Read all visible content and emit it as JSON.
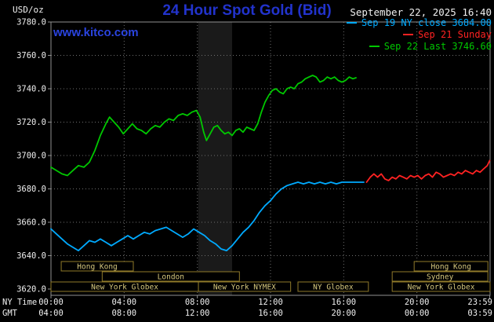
{
  "header": {
    "unit_label": "USD/oz",
    "title": "24 Hour Spot Gold (Bid)",
    "datetime": "September 22, 2025 16:40",
    "watermark": "www.kitco.com"
  },
  "colors": {
    "background": "#000000",
    "title_blue": "#2233cc",
    "watermark_blue": "#2a44e0",
    "axis_text": "#f0f0f0",
    "grid": "#6f6f6f",
    "border": "#919191",
    "session_border": "#8f7a2a",
    "session_text": "#d6c87e",
    "band": "#1a1a1a"
  },
  "legend": [
    {
      "label": "Sep 19 NY close 3684.00",
      "color": "#00aaff"
    },
    {
      "label": "Sep 21 Sunday",
      "color": "#ff2222"
    },
    {
      "label": "Sep 22 Last 3746.60",
      "color": "#00c800"
    }
  ],
  "sessions": {
    "rows": [
      {
        "boxes": [
          {
            "label": "Hong Kong",
            "t0": 0.56,
            "t1": 4.5
          },
          {
            "label": "Hong Kong",
            "t0": 19.85,
            "t1": 23.88
          }
        ]
      },
      {
        "boxes": [
          {
            "label": "London",
            "t0": 2.8,
            "t1": 10.3
          },
          {
            "label": "Sydney",
            "t0": 18.65,
            "t1": 23.88
          }
        ]
      },
      {
        "boxes": [
          {
            "label": "New York Globex",
            "t0": 0.0,
            "t1": 8.06
          },
          {
            "label": "New York NYMEX",
            "t0": 8.06,
            "t1": 13.1
          },
          {
            "label": "NY Globex",
            "t0": 13.5,
            "t1": 17.35
          },
          {
            "label": "New York Globex",
            "t0": 18.65,
            "t1": 24.0
          }
        ]
      }
    ]
  },
  "chart_data": {
    "type": "line",
    "title": "24 Hour Spot Gold (Bid)",
    "ylabel": "USD/oz",
    "ylim": [
      3620,
      3780
    ],
    "y_tick_step": 20,
    "y_tick_labels": [
      "3780.0",
      "3760.0",
      "3740.0",
      "3720.0",
      "3700.0",
      "3680.0",
      "3660.0",
      "3640.0",
      "3620.0"
    ],
    "xlim": [
      0,
      24
    ],
    "grid": true,
    "legend_position": "top-right",
    "x_axis_row_labels": [
      "NY Time",
      "GMT"
    ],
    "x_ticks": [
      {
        "t": 0,
        "ny": "00:00",
        "gmt": "04:00"
      },
      {
        "t": 4,
        "ny": "04:00",
        "gmt": "08:00"
      },
      {
        "t": 8,
        "ny": "08:00",
        "gmt": "12:00"
      },
      {
        "t": 12,
        "ny": "12:00",
        "gmt": "16:00"
      },
      {
        "t": 16,
        "ny": "16:00",
        "gmt": "20:00"
      },
      {
        "t": 20,
        "ny": "20:00",
        "gmt": "00:00"
      },
      {
        "t": 23.983,
        "ny": "23:59",
        "gmt": "03:59"
      }
    ],
    "band": {
      "x0": 8.05,
      "x1": 9.9,
      "color": "#1a1a1a"
    },
    "series": [
      {
        "name": "Sep 19 NY close 3684.00",
        "color": "#00aaff",
        "points": [
          [
            0,
            3656
          ],
          [
            0.3,
            3653
          ],
          [
            0.6,
            3650
          ],
          [
            0.9,
            3647
          ],
          [
            1.2,
            3645
          ],
          [
            1.5,
            3643
          ],
          [
            1.8,
            3646
          ],
          [
            2.1,
            3649
          ],
          [
            2.4,
            3648
          ],
          [
            2.7,
            3650
          ],
          [
            3,
            3648
          ],
          [
            3.3,
            3646
          ],
          [
            3.6,
            3648
          ],
          [
            3.9,
            3650
          ],
          [
            4.2,
            3652
          ],
          [
            4.5,
            3650
          ],
          [
            4.8,
            3652
          ],
          [
            5.1,
            3654
          ],
          [
            5.4,
            3653
          ],
          [
            5.7,
            3655
          ],
          [
            6,
            3656
          ],
          [
            6.3,
            3657
          ],
          [
            6.6,
            3655
          ],
          [
            6.9,
            3653
          ],
          [
            7.2,
            3651
          ],
          [
            7.5,
            3653
          ],
          [
            7.8,
            3656
          ],
          [
            8.1,
            3654
          ],
          [
            8.4,
            3652
          ],
          [
            8.7,
            3649
          ],
          [
            9,
            3647
          ],
          [
            9.3,
            3644
          ],
          [
            9.6,
            3643
          ],
          [
            9.9,
            3646
          ],
          [
            10.2,
            3650
          ],
          [
            10.5,
            3654
          ],
          [
            10.8,
            3657
          ],
          [
            11.1,
            3661
          ],
          [
            11.4,
            3666
          ],
          [
            11.7,
            3670
          ],
          [
            12,
            3673
          ],
          [
            12.3,
            3677
          ],
          [
            12.6,
            3680
          ],
          [
            12.9,
            3682
          ],
          [
            13.2,
            3683
          ],
          [
            13.5,
            3684
          ],
          [
            13.8,
            3683
          ],
          [
            14.1,
            3684
          ],
          [
            14.4,
            3683
          ],
          [
            14.7,
            3684
          ],
          [
            15,
            3683
          ],
          [
            15.3,
            3684
          ],
          [
            15.6,
            3683
          ],
          [
            15.9,
            3684
          ],
          [
            16.2,
            3684
          ],
          [
            16.5,
            3684
          ],
          [
            16.8,
            3684
          ],
          [
            17.1,
            3684
          ]
        ]
      },
      {
        "name": "Sep 21 Sunday",
        "color": "#ff2222",
        "points": [
          [
            17.25,
            3684
          ],
          [
            17.45,
            3687
          ],
          [
            17.65,
            3689
          ],
          [
            17.85,
            3687
          ],
          [
            18.05,
            3689
          ],
          [
            18.25,
            3686
          ],
          [
            18.45,
            3685
          ],
          [
            18.65,
            3687
          ],
          [
            18.85,
            3686
          ],
          [
            19.05,
            3688
          ],
          [
            19.25,
            3687
          ],
          [
            19.45,
            3686
          ],
          [
            19.65,
            3688
          ],
          [
            19.85,
            3687
          ],
          [
            20.05,
            3688
          ],
          [
            20.25,
            3686
          ],
          [
            20.45,
            3688
          ],
          [
            20.65,
            3689
          ],
          [
            20.85,
            3687
          ],
          [
            21.05,
            3690
          ],
          [
            21.25,
            3689
          ],
          [
            21.45,
            3687
          ],
          [
            21.65,
            3688
          ],
          [
            21.85,
            3689
          ],
          [
            22.05,
            3688
          ],
          [
            22.25,
            3690
          ],
          [
            22.45,
            3689
          ],
          [
            22.65,
            3691
          ],
          [
            22.85,
            3690
          ],
          [
            23.05,
            3689
          ],
          [
            23.25,
            3691
          ],
          [
            23.45,
            3690
          ],
          [
            23.65,
            3692
          ],
          [
            23.85,
            3694
          ],
          [
            23.98,
            3697
          ]
        ]
      },
      {
        "name": "Sep 22 Last 3746.60",
        "color": "#00c800",
        "points": [
          [
            0,
            3693
          ],
          [
            0.3,
            3691
          ],
          [
            0.6,
            3689
          ],
          [
            0.9,
            3688
          ],
          [
            1.2,
            3691
          ],
          [
            1.5,
            3694
          ],
          [
            1.8,
            3693
          ],
          [
            2.1,
            3696
          ],
          [
            2.4,
            3703
          ],
          [
            2.7,
            3712
          ],
          [
            3,
            3719
          ],
          [
            3.2,
            3723
          ],
          [
            3.45,
            3720
          ],
          [
            3.7,
            3717
          ],
          [
            3.95,
            3713
          ],
          [
            4.2,
            3716
          ],
          [
            4.45,
            3719
          ],
          [
            4.7,
            3716
          ],
          [
            4.95,
            3715
          ],
          [
            5.2,
            3713
          ],
          [
            5.45,
            3716
          ],
          [
            5.7,
            3718
          ],
          [
            5.95,
            3717
          ],
          [
            6.2,
            3720
          ],
          [
            6.45,
            3722
          ],
          [
            6.7,
            3721
          ],
          [
            6.95,
            3724
          ],
          [
            7.2,
            3725
          ],
          [
            7.45,
            3724
          ],
          [
            7.7,
            3726
          ],
          [
            7.95,
            3727
          ],
          [
            8.15,
            3723
          ],
          [
            8.35,
            3714
          ],
          [
            8.5,
            3709
          ],
          [
            8.7,
            3713
          ],
          [
            8.9,
            3717
          ],
          [
            9.1,
            3718
          ],
          [
            9.3,
            3715
          ],
          [
            9.5,
            3713
          ],
          [
            9.7,
            3714
          ],
          [
            9.9,
            3712
          ],
          [
            10.1,
            3715
          ],
          [
            10.3,
            3716
          ],
          [
            10.5,
            3714
          ],
          [
            10.7,
            3717
          ],
          [
            10.9,
            3716
          ],
          [
            11.1,
            3715
          ],
          [
            11.3,
            3719
          ],
          [
            11.5,
            3726
          ],
          [
            11.7,
            3732
          ],
          [
            11.9,
            3736
          ],
          [
            12.1,
            3739
          ],
          [
            12.3,
            3740
          ],
          [
            12.5,
            3738
          ],
          [
            12.7,
            3737
          ],
          [
            12.9,
            3740
          ],
          [
            13.1,
            3741
          ],
          [
            13.3,
            3740
          ],
          [
            13.5,
            3743
          ],
          [
            13.7,
            3744
          ],
          [
            13.9,
            3746
          ],
          [
            14.1,
            3747
          ],
          [
            14.3,
            3748
          ],
          [
            14.5,
            3747
          ],
          [
            14.7,
            3744
          ],
          [
            14.9,
            3745
          ],
          [
            15.1,
            3747
          ],
          [
            15.3,
            3746
          ],
          [
            15.5,
            3747
          ],
          [
            15.7,
            3745
          ],
          [
            15.9,
            3744
          ],
          [
            16.1,
            3745
          ],
          [
            16.3,
            3747
          ],
          [
            16.5,
            3746
          ],
          [
            16.67,
            3746.6
          ]
        ]
      }
    ]
  }
}
